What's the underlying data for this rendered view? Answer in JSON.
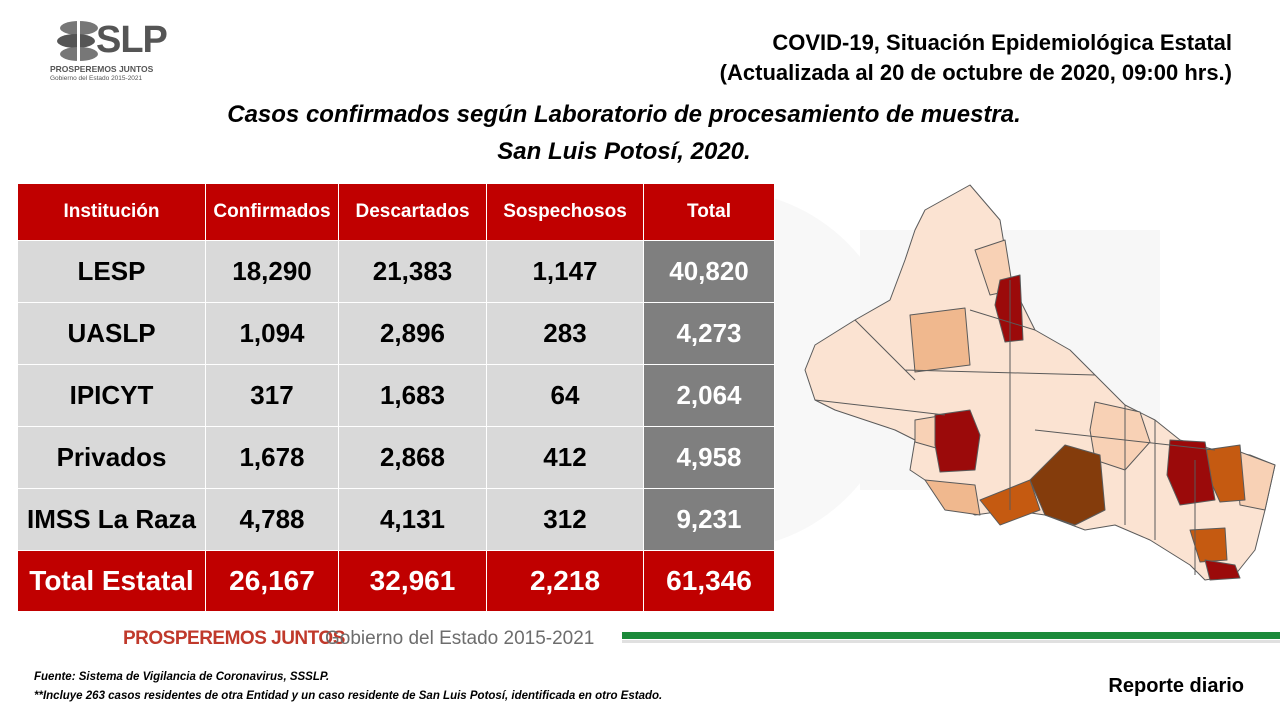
{
  "logo": {
    "word": "SLP",
    "tagline": "PROSPEREMOS JUNTOS",
    "subtag": "Gobierno del Estado 2015-2021"
  },
  "header": {
    "title_line1": "COVID-19, Situación Epidemiológica Estatal",
    "title_line2": "(Actualizada al 20 de octubre de 2020, 09:00 hrs.)"
  },
  "subtitle": {
    "line1": "Casos confirmados según Laboratorio de procesamiento de muestra.",
    "line2": "San Luis Potosí, 2020."
  },
  "table": {
    "headers": [
      "Institución",
      "Confirmados",
      "Descartados",
      "Sospechosos",
      "Total"
    ],
    "rows": [
      [
        "LESP",
        "18,290",
        "21,383",
        "1,147",
        "40,820"
      ],
      [
        "UASLP",
        "1,094",
        "2,896",
        "283",
        "4,273"
      ],
      [
        "IPICYT",
        "317",
        "1,683",
        "64",
        "2,064"
      ],
      [
        "Privados",
        "1,678",
        "2,868",
        "412",
        "4,958"
      ],
      [
        "IMSS La Raza",
        "4,788",
        "4,131",
        "312",
        "9,231"
      ]
    ],
    "total_row": [
      "Total Estatal",
      "26,167",
      "32,961",
      "2,218",
      "61,346"
    ]
  },
  "colors": {
    "header_red": "#c00000",
    "row_gray": "#d9d9d9",
    "total_gray": "#7f7f7f",
    "footer_green": "#1b8a3a",
    "map_light": "#fbe3d2",
    "map_mid": "#f0b88e",
    "map_orange": "#c55a11",
    "map_brown": "#843c0c",
    "map_red": "#9b0a0a"
  },
  "footer": {
    "prosperemos": "PROSPEREMOS JUNTOS",
    "gobierno": "Gobierno del Estado 2015-2021",
    "source_line1": "Fuente: Sistema de Vigilancia de Coronavirus, SSSLP.",
    "source_line2": "**Incluye 263 casos residentes de otra Entidad y un caso residente de San Luis Potosí, identificada en otro Estado.",
    "report": "Reporte diario"
  }
}
